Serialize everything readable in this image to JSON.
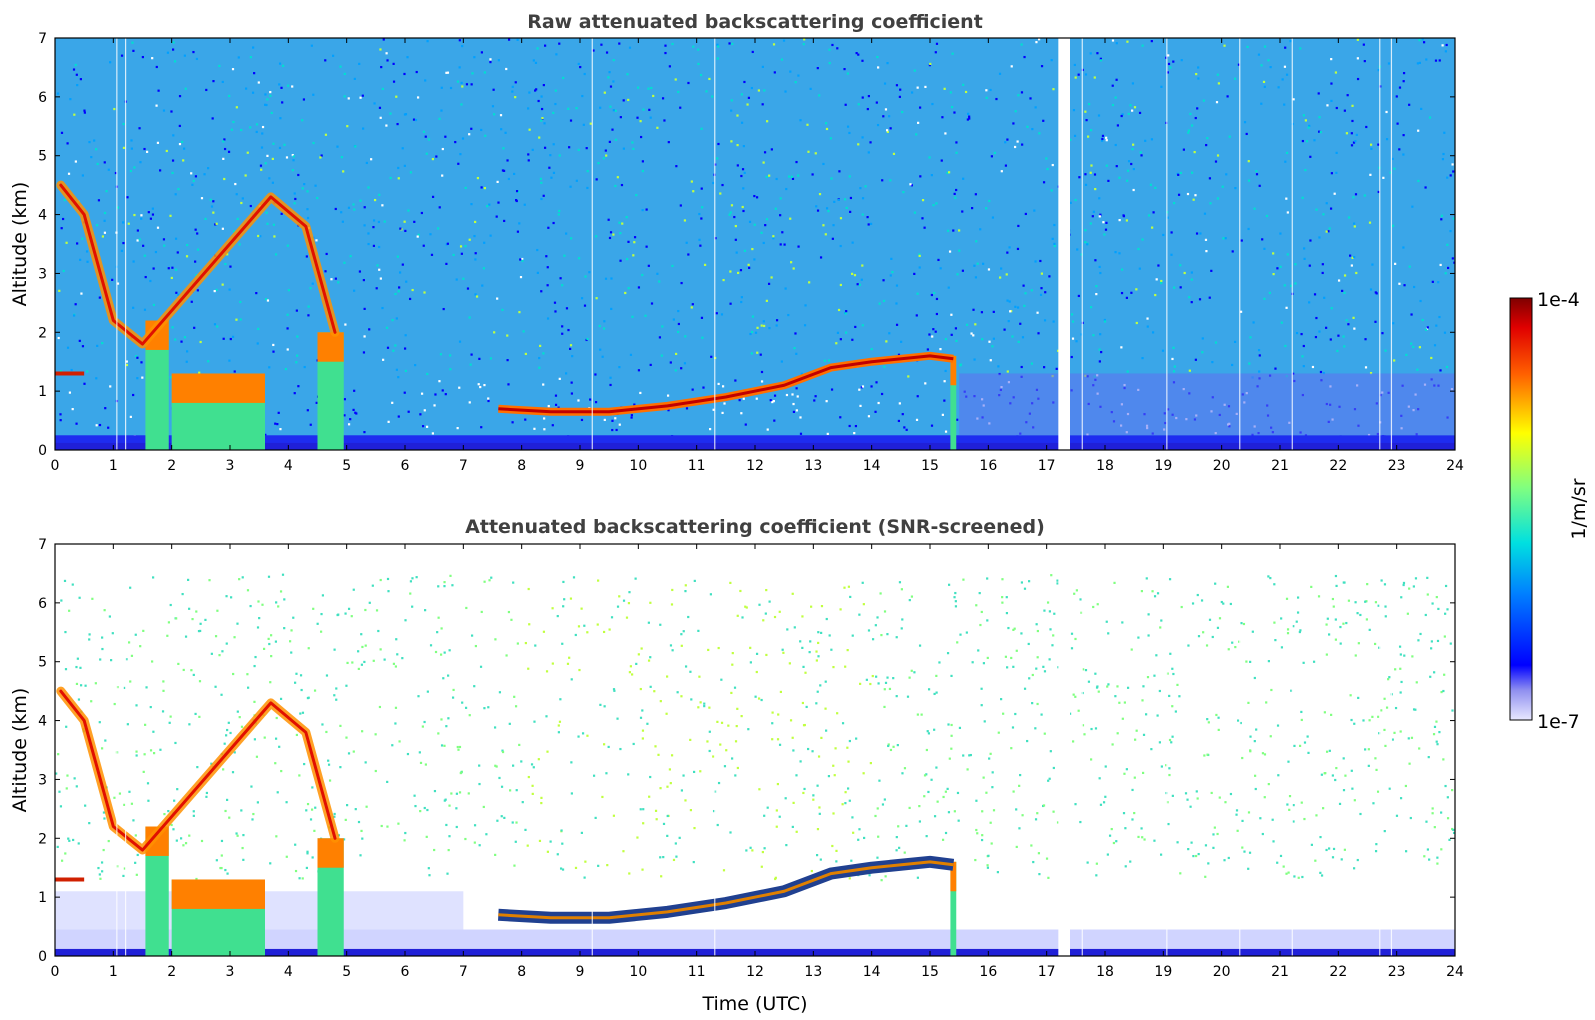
{
  "chart_data": [
    {
      "type": "heatmap",
      "title": "Raw attenuated backscattering coefficient",
      "xlabel": "",
      "ylabel": "Altitude (km)",
      "xlim": [
        0,
        24
      ],
      "ylim": [
        0,
        7
      ],
      "xticks": [
        "0",
        "1",
        "2",
        "3",
        "4",
        "5",
        "6",
        "7",
        "8",
        "9",
        "10",
        "11",
        "12",
        "13",
        "14",
        "15",
        "16",
        "17",
        "18",
        "19",
        "20",
        "21",
        "22",
        "23",
        "24"
      ],
      "yticks": [
        "0",
        "1",
        "2",
        "3",
        "4",
        "5",
        "6",
        "7"
      ],
      "variable": "attenuated backscatter",
      "screened": false,
      "missing_data_gap_utc": [
        17.2,
        17.4
      ],
      "features": {
        "cloud_layer_base_km": [
          {
            "x": 0.0,
            "y": 1.3
          },
          {
            "x": 0.5,
            "y": 1.3
          },
          {
            "x": 7.6,
            "y": 0.7
          },
          {
            "x": 8.5,
            "y": 0.65
          },
          {
            "x": 9.5,
            "y": 0.65
          },
          {
            "x": 10.5,
            "y": 0.75
          },
          {
            "x": 11.5,
            "y": 0.9
          },
          {
            "x": 12.5,
            "y": 1.1
          },
          {
            "x": 13.3,
            "y": 1.4
          },
          {
            "x": 14.0,
            "y": 1.5
          },
          {
            "x": 15.0,
            "y": 1.6
          },
          {
            "x": 15.4,
            "y": 1.55
          }
        ],
        "high_cloud_top_km": [
          {
            "x": 0.1,
            "y": 4.5
          },
          {
            "x": 0.5,
            "y": 4.0
          },
          {
            "x": 1.0,
            "y": 2.2
          },
          {
            "x": 1.5,
            "y": 1.8
          },
          {
            "x": 3.7,
            "y": 4.3
          },
          {
            "x": 4.3,
            "y": 3.8
          },
          {
            "x": 4.8,
            "y": 2.0
          }
        ],
        "precipitation_shafts_utc": [
          [
            1.55,
            1.95
          ],
          [
            2.0,
            3.6
          ],
          [
            4.5,
            4.95
          ],
          [
            15.35,
            15.45
          ]
        ]
      }
    },
    {
      "type": "heatmap",
      "title": "Attenuated backscattering coefficient (SNR-screened)",
      "xlabel": "Time (UTC)",
      "ylabel": "Altitude (km)",
      "xlim": [
        0,
        24
      ],
      "ylim": [
        0,
        7
      ],
      "xticks": [
        "0",
        "1",
        "2",
        "3",
        "4",
        "5",
        "6",
        "7",
        "8",
        "9",
        "10",
        "11",
        "12",
        "13",
        "14",
        "15",
        "16",
        "17",
        "18",
        "19",
        "20",
        "21",
        "22",
        "23",
        "24"
      ],
      "yticks": [
        "0",
        "1",
        "2",
        "3",
        "4",
        "5",
        "6",
        "7"
      ],
      "variable": "attenuated backscatter",
      "screened": true,
      "missing_data_gap_utc": [
        17.2,
        17.4
      ]
    }
  ],
  "colorbar": {
    "label": "1/m/sr",
    "max_label": "1e-4",
    "min_label": "1e-7",
    "min": 1e-07,
    "max": 0.0001,
    "scale": "log",
    "colormap": "jet"
  },
  "colors": {
    "title": "#404040",
    "low": "#0000ff",
    "high": "#8b0000",
    "background": "#ffffff"
  }
}
